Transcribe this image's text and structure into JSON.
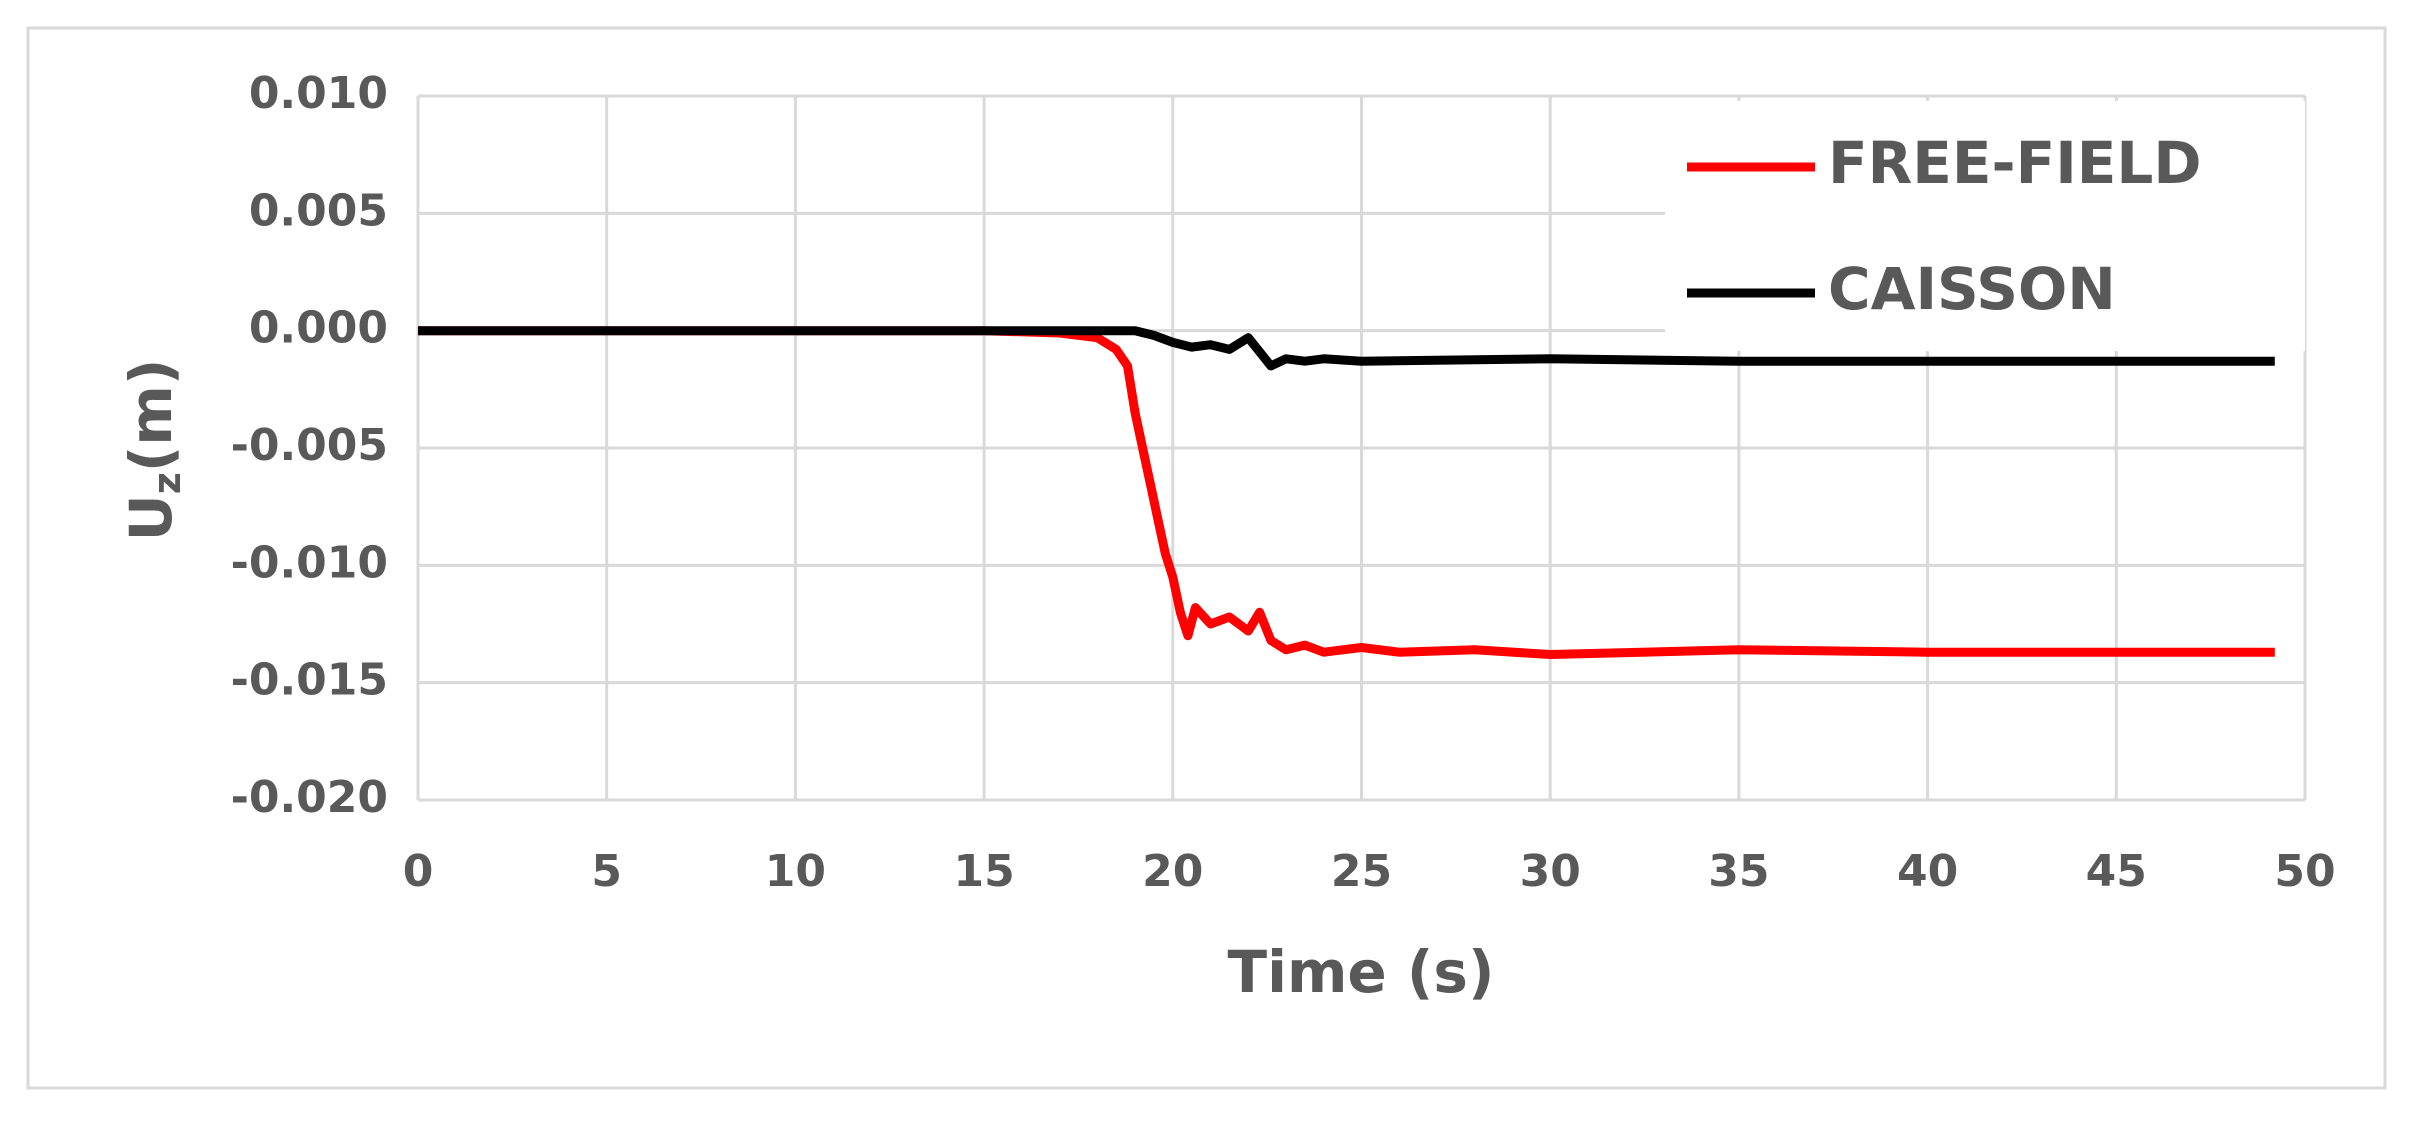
{
  "chart_data": {
    "type": "line",
    "x_label": "Time (s)",
    "y_label": [
      "U",
      "z",
      "(m)"
    ],
    "xlim": [
      0,
      50
    ],
    "xticks": [
      0,
      5,
      10,
      15,
      20,
      25,
      30,
      35,
      40,
      45,
      50
    ],
    "ylim": [
      -0.02,
      0.01
    ],
    "yticks": [
      {
        "value": -0.02,
        "label": "-0.020"
      },
      {
        "value": -0.015,
        "label": "-0.015"
      },
      {
        "value": -0.01,
        "label": "-0.010"
      },
      {
        "value": -0.005,
        "label": "-0.005"
      },
      {
        "value": 0,
        "label": "0.000"
      },
      {
        "value": 0.005,
        "label": "0.005"
      },
      {
        "value": 0.01,
        "label": "0.010"
      }
    ],
    "grid": true,
    "legend": "upper right",
    "series": [
      {
        "name": "FREE-FIELD",
        "color": "#ff0000",
        "x": [
          0,
          15,
          17,
          18,
          18.5,
          18.8,
          19.0,
          19.2,
          19.4,
          19.6,
          19.8,
          20.0,
          20.2,
          20.4,
          20.6,
          21,
          21.5,
          22,
          22.3,
          22.6,
          23,
          23.5,
          24,
          25,
          26,
          28,
          30,
          35,
          40,
          49.2
        ],
        "values": [
          0,
          0,
          -0.0001,
          -0.0003,
          -0.0008,
          -0.0015,
          -0.0035,
          -0.005,
          -0.0065,
          -0.008,
          -0.0095,
          -0.0105,
          -0.012,
          -0.013,
          -0.0118,
          -0.0125,
          -0.0122,
          -0.0128,
          -0.012,
          -0.0132,
          -0.0136,
          -0.0134,
          -0.0137,
          -0.0135,
          -0.0137,
          -0.0136,
          -0.0138,
          -0.0136,
          -0.0137,
          -0.0137
        ]
      },
      {
        "name": "CAISSON",
        "color": "#000000",
        "x": [
          0,
          18,
          19,
          19.5,
          20,
          20.5,
          21,
          21.5,
          22,
          22.3,
          22.6,
          23,
          23.5,
          24,
          25,
          30,
          35,
          49.2
        ],
        "values": [
          0,
          0,
          0,
          -0.0002,
          -0.0005,
          -0.0007,
          -0.0006,
          -0.0008,
          -0.0003,
          -0.0009,
          -0.0015,
          -0.0012,
          -0.0013,
          -0.0012,
          -0.0013,
          -0.0012,
          -0.0013,
          -0.0013
        ]
      }
    ]
  }
}
